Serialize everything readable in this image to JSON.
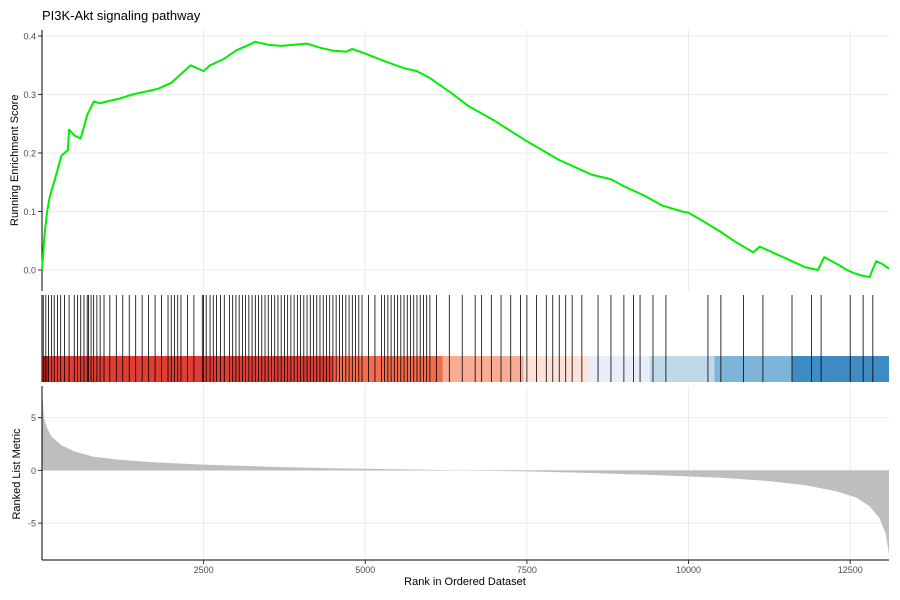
{
  "chart_data": {
    "type": "line",
    "title": "PI3K-Akt signaling pathway",
    "xlabel": "Rank in Ordered Dataset",
    "x_range": [
      1,
      13100
    ],
    "x_ticks": [
      2500,
      5000,
      7500,
      10000,
      12500
    ],
    "x_tick_labels": [
      "2500",
      "5000",
      "7500",
      "10000",
      "12500"
    ],
    "panels": [
      {
        "name": "running-enrichment",
        "ylabel": "Running Enrichment Score",
        "ylim": [
          -0.02,
          0.41
        ],
        "y_ticks": [
          0.0,
          0.1,
          0.2,
          0.3,
          0.4
        ],
        "y_tick_labels": [
          "0.0",
          "0.1",
          "0.2",
          "0.3",
          "0.4"
        ],
        "line_color": "#00ee00",
        "x": [
          1,
          40,
          80,
          120,
          200,
          300,
          400,
          420,
          500,
          600,
          700,
          800,
          900,
          1000,
          1200,
          1400,
          1600,
          1800,
          2000,
          2200,
          2300,
          2500,
          2600,
          2800,
          3000,
          3200,
          3300,
          3500,
          3700,
          3900,
          4100,
          4300,
          4500,
          4700,
          4800,
          5000,
          5300,
          5600,
          5800,
          6000,
          6300,
          6600,
          7000,
          7500,
          8000,
          8500,
          8800,
          9000,
          9300,
          9600,
          9900,
          10000,
          10200,
          10500,
          10700,
          11000,
          11100,
          11400,
          11600,
          11800,
          12000,
          12100,
          12300,
          12450,
          12550,
          12700,
          12800,
          12900,
          13000,
          13100
        ],
        "y": [
          0.0,
          0.06,
          0.1,
          0.125,
          0.155,
          0.195,
          0.205,
          0.24,
          0.23,
          0.225,
          0.265,
          0.288,
          0.285,
          0.288,
          0.293,
          0.3,
          0.305,
          0.31,
          0.32,
          0.34,
          0.35,
          0.34,
          0.35,
          0.36,
          0.375,
          0.385,
          0.39,
          0.385,
          0.383,
          0.385,
          0.387,
          0.38,
          0.375,
          0.373,
          0.378,
          0.37,
          0.357,
          0.345,
          0.34,
          0.328,
          0.305,
          0.28,
          0.255,
          0.22,
          0.188,
          0.163,
          0.155,
          0.143,
          0.128,
          0.11,
          0.1,
          0.098,
          0.085,
          0.065,
          0.05,
          0.03,
          0.04,
          0.025,
          0.015,
          0.005,
          0.0,
          0.022,
          0.01,
          0.0,
          -0.005,
          -0.01,
          -0.012,
          0.015,
          0.01,
          0.002
        ]
      },
      {
        "name": "gene-hits",
        "hit_positions": [
          20,
          60,
          100,
          150,
          190,
          240,
          290,
          350,
          420,
          500,
          550,
          600,
          650,
          700,
          720,
          760,
          800,
          850,
          900,
          960,
          1050,
          1150,
          1250,
          1350,
          1450,
          1550,
          1650,
          1750,
          1850,
          1950,
          2000,
          2050,
          2100,
          2150,
          2250,
          2350,
          2480,
          2500,
          2540,
          2600,
          2650,
          2700,
          2760,
          2820,
          2900,
          2950,
          3000,
          3050,
          3100,
          3150,
          3200,
          3250,
          3300,
          3350,
          3400,
          3450,
          3500,
          3550,
          3600,
          3650,
          3700,
          3750,
          3800,
          3850,
          3900,
          3950,
          4000,
          4050,
          4100,
          4150,
          4200,
          4250,
          4300,
          4350,
          4400,
          4450,
          4500,
          4550,
          4600,
          4650,
          4700,
          4750,
          4800,
          4850,
          4900,
          4950,
          5050,
          5150,
          5250,
          5300,
          5350,
          5400,
          5450,
          5500,
          5550,
          5600,
          5650,
          5700,
          5750,
          5800,
          5850,
          5900,
          5950,
          6000,
          6100,
          6300,
          6500,
          6700,
          6800,
          6950,
          7100,
          7250,
          7400,
          7500,
          7650,
          7800,
          7900,
          8000,
          8100,
          8200,
          8350,
          8600,
          8800,
          9000,
          9150,
          9250,
          9450,
          9650,
          10300,
          10500,
          10850,
          11150,
          11600,
          11900,
          12050,
          12500,
          12700,
          12850
        ]
      },
      {
        "name": "rank-color-bar",
        "segments": [
          {
            "from": 1,
            "to": 4500,
            "color": "#e03e35"
          },
          {
            "from": 4500,
            "to": 6200,
            "color": "#f46b4e"
          },
          {
            "from": 6200,
            "to": 7450,
            "color": "#f8ac93"
          },
          {
            "from": 7450,
            "to": 8450,
            "color": "#fde2d8"
          },
          {
            "from": 8450,
            "to": 9400,
            "color": "#e8eef9"
          },
          {
            "from": 9400,
            "to": 10400,
            "color": "#bfd9e8"
          },
          {
            "from": 10400,
            "to": 11600,
            "color": "#7cb5d8"
          },
          {
            "from": 11600,
            "to": 13100,
            "color": "#3e8cc3"
          }
        ]
      },
      {
        "name": "ranked-list-metric",
        "ylabel": "Ranked List Metric",
        "ylim": [
          -8.5,
          8
        ],
        "y_ticks": [
          -5,
          0,
          5
        ],
        "y_tick_labels": [
          "-5",
          "0",
          "5"
        ],
        "fill_color": "#bebebe",
        "x": [
          1,
          30,
          80,
          150,
          300,
          500,
          800,
          1200,
          1800,
          2500,
          3500,
          4500,
          5500,
          6500,
          7500,
          8500,
          9500,
          10500,
          11200,
          11800,
          12300,
          12600,
          12800,
          12950,
          13050,
          13100
        ],
        "y": [
          7.8,
          5.0,
          4.0,
          3.2,
          2.4,
          1.8,
          1.3,
          1.0,
          0.75,
          0.55,
          0.35,
          0.2,
          0.1,
          0.0,
          -0.1,
          -0.25,
          -0.45,
          -0.7,
          -1.0,
          -1.4,
          -2.0,
          -2.6,
          -3.4,
          -4.5,
          -6.0,
          -8.0
        ]
      }
    ]
  }
}
